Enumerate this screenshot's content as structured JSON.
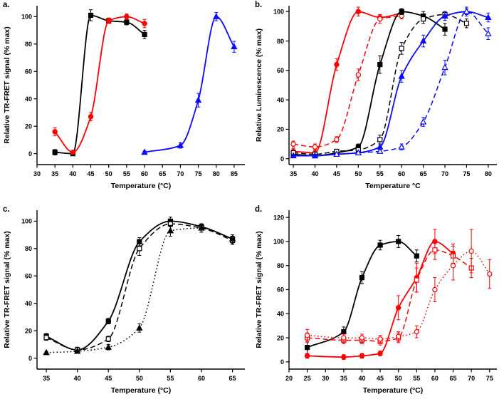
{
  "figure": {
    "background": "#ffffff",
    "colors": {
      "black": "#000000",
      "red": "#ff0000",
      "blue": "#0a0aff"
    }
  },
  "chart_data": [
    {
      "id": "a",
      "panel_label": "a.",
      "type": "scatter",
      "title": "",
      "xlabel": "Temperature (°C)",
      "ylabel": "Relative TR-FRET signal (% max)",
      "xlim": [
        30,
        88
      ],
      "ylim": [
        -8,
        108
      ],
      "xticks": [
        30,
        35,
        40,
        45,
        50,
        55,
        60,
        65,
        70,
        75,
        80,
        85
      ],
      "yticks": [
        0,
        20,
        40,
        60,
        80,
        100
      ],
      "grid": false,
      "legend": "none",
      "series": [
        {
          "name": "black-filled-squares-solid",
          "color": "#000000",
          "marker": "square",
          "fill": "filled",
          "line": "solid",
          "x": [
            35,
            40,
            45,
            50,
            55,
            60
          ],
          "y": [
            1,
            0,
            101,
            97,
            96,
            87
          ],
          "err": [
            2,
            1,
            4,
            2,
            2,
            3
          ]
        },
        {
          "name": "red-filled-circles-solid",
          "color": "#ff0000",
          "marker": "circle",
          "fill": "filled",
          "line": "solid",
          "x": [
            35,
            40,
            45,
            50,
            55,
            60
          ],
          "y": [
            16,
            1,
            27,
            97,
            100,
            95
          ],
          "err": [
            3,
            1,
            3,
            2,
            2,
            3
          ]
        },
        {
          "name": "blue-filled-triangles-solid",
          "color": "#0a0aff",
          "marker": "triangle",
          "fill": "filled",
          "line": "solid",
          "x": [
            60,
            70,
            75,
            80,
            85
          ],
          "y": [
            1,
            6,
            39,
            100,
            78
          ],
          "err": [
            1,
            2,
            5,
            3,
            4
          ]
        }
      ]
    },
    {
      "id": "b",
      "panel_label": "b.",
      "type": "scatter",
      "title": "",
      "xlabel": "Temperature °C",
      "ylabel": "Relative Luminescence (% max)",
      "xlim": [
        34,
        82
      ],
      "ylim": [
        -4,
        104
      ],
      "xticks": [
        35,
        40,
        45,
        50,
        55,
        60,
        65,
        70,
        75,
        80
      ],
      "yticks": [
        0,
        20,
        40,
        60,
        80,
        100
      ],
      "grid": false,
      "legend": "none",
      "series": [
        {
          "name": "red-filled-circles-solid",
          "color": "#ff0000",
          "marker": "circle",
          "fill": "filled",
          "line": "solid",
          "x": [
            35,
            40,
            45,
            50,
            55,
            60
          ],
          "y": [
            5,
            4,
            64,
            100,
            96,
            99
          ],
          "err": [
            2,
            2,
            4,
            3,
            2,
            2
          ]
        },
        {
          "name": "red-open-circles-dashed",
          "color": "#ff0000",
          "marker": "circle",
          "fill": "open",
          "line": "dashed",
          "x": [
            35,
            40,
            45,
            50,
            55,
            60
          ],
          "y": [
            10,
            8,
            13,
            57,
            95,
            97
          ],
          "err": [
            2,
            2,
            2,
            4,
            3,
            2
          ]
        },
        {
          "name": "black-filled-squares-solid",
          "color": "#000000",
          "marker": "square",
          "fill": "filled",
          "line": "solid",
          "x": [
            35,
            40,
            45,
            50,
            55,
            60,
            65,
            70
          ],
          "y": [
            3,
            2,
            4,
            8,
            64,
            100,
            97,
            88
          ],
          "err": [
            1,
            1,
            1,
            2,
            6,
            2,
            3,
            4
          ]
        },
        {
          "name": "black-open-squares-dashed",
          "color": "#000000",
          "marker": "square",
          "fill": "open",
          "line": "dashed",
          "x": [
            35,
            40,
            45,
            50,
            55,
            60,
            65,
            70,
            75
          ],
          "y": [
            4,
            3,
            5,
            6,
            13,
            75,
            95,
            98,
            92
          ],
          "err": [
            1,
            1,
            1,
            1,
            3,
            4,
            3,
            2,
            3
          ]
        },
        {
          "name": "blue-filled-triangles-solid",
          "color": "#0a0aff",
          "marker": "triangle",
          "fill": "filled",
          "line": "solid",
          "x": [
            35,
            40,
            45,
            50,
            55,
            60,
            65,
            70,
            75,
            80
          ],
          "y": [
            2,
            2,
            3,
            4,
            8,
            56,
            80,
            97,
            100,
            96
          ],
          "err": [
            1,
            1,
            1,
            1,
            2,
            4,
            4,
            3,
            2,
            3
          ]
        },
        {
          "name": "blue-open-triangles-dashed",
          "color": "#0a0aff",
          "marker": "triangle",
          "fill": "open",
          "line": "dashed",
          "x": [
            45,
            50,
            55,
            60,
            65,
            70,
            75,
            80
          ],
          "y": [
            3,
            4,
            5,
            8,
            25,
            62,
            100,
            85
          ],
          "err": [
            1,
            1,
            1,
            2,
            3,
            5,
            3,
            4
          ]
        }
      ]
    },
    {
      "id": "c",
      "panel_label": "c.",
      "type": "scatter",
      "title": "",
      "xlabel": "Temperature (°C)",
      "ylabel": "Relative TR-FRET signal (% max)",
      "xlim": [
        33.5,
        67
      ],
      "ylim": [
        -8,
        108
      ],
      "xticks": [
        35,
        40,
        45,
        50,
        55,
        60,
        65
      ],
      "yticks": [
        0,
        20,
        40,
        60,
        80,
        100
      ],
      "grid": false,
      "legend": "none",
      "series": [
        {
          "name": "black-filled-squares-solid",
          "color": "#000000",
          "marker": "square",
          "fill": "filled",
          "line": "solid",
          "x": [
            35,
            40,
            45,
            50,
            55,
            60,
            65
          ],
          "y": [
            16,
            6,
            27,
            85,
            100,
            96,
            87
          ],
          "err": [
            2,
            2,
            2,
            3,
            3,
            2,
            3
          ]
        },
        {
          "name": "black-open-squares-dashed",
          "color": "#000000",
          "marker": "square",
          "fill": "open",
          "line": "dashed",
          "x": [
            35,
            40,
            45,
            50,
            55,
            60,
            65
          ],
          "y": [
            15,
            6,
            14,
            80,
            98,
            95,
            86
          ],
          "err": [
            2,
            1,
            2,
            5,
            2,
            3,
            3
          ]
        },
        {
          "name": "black-filled-triangles-dotted",
          "color": "#000000",
          "marker": "triangle",
          "fill": "filled",
          "line": "dotted",
          "x": [
            35,
            40,
            45,
            50,
            55,
            60,
            65
          ],
          "y": [
            4,
            5,
            8,
            22,
            93,
            95,
            87
          ],
          "err": [
            1,
            1,
            2,
            3,
            4,
            3,
            3
          ]
        }
      ]
    },
    {
      "id": "d",
      "panel_label": "d.",
      "type": "scatter",
      "title": "",
      "xlabel": "Temperature (°C)",
      "ylabel": "Relative TR-FRET signal (% max)",
      "xlim": [
        20,
        77
      ],
      "ylim": [
        -6,
        126
      ],
      "xticks": [
        20,
        25,
        30,
        35,
        40,
        45,
        50,
        55,
        60,
        65,
        70,
        75
      ],
      "yticks": [
        0,
        20,
        40,
        60,
        80,
        100,
        120
      ],
      "grid": false,
      "legend": "none",
      "series": [
        {
          "name": "black-filled-squares-solid",
          "color": "#000000",
          "marker": "square",
          "fill": "filled",
          "line": "solid",
          "x": [
            25,
            35,
            40,
            45,
            50,
            55
          ],
          "y": [
            12,
            25,
            70,
            97,
            100,
            88
          ],
          "err": [
            5,
            4,
            5,
            4,
            5,
            5
          ]
        },
        {
          "name": "red-filled-circles-solid",
          "color": "#ff0000",
          "marker": "circle",
          "fill": "filled",
          "line": "solid",
          "x": [
            25,
            35,
            40,
            45,
            50,
            55,
            60,
            65
          ],
          "y": [
            5,
            4,
            5,
            7,
            45,
            70,
            100,
            90
          ],
          "err": [
            2,
            2,
            2,
            2,
            10,
            12,
            10,
            8
          ]
        },
        {
          "name": "red-open-squares-dashed",
          "color": "#ff0000",
          "marker": "square",
          "fill": "open",
          "line": "dashed",
          "x": [
            25,
            35,
            40,
            45,
            50,
            55,
            60,
            65,
            70
          ],
          "y": [
            20,
            18,
            18,
            17,
            20,
            68,
            93,
            88,
            78
          ],
          "err": [
            4,
            3,
            3,
            3,
            4,
            10,
            8,
            8,
            8
          ]
        },
        {
          "name": "red-open-circles-dotted",
          "color": "#ff0000",
          "marker": "circle",
          "fill": "open",
          "line": "dotted",
          "x": [
            25,
            35,
            40,
            45,
            50,
            55,
            60,
            65,
            70,
            75
          ],
          "y": [
            22,
            20,
            20,
            19,
            21,
            25,
            60,
            80,
            92,
            73
          ],
          "err": [
            5,
            3,
            3,
            3,
            4,
            5,
            10,
            12,
            18,
            12
          ]
        }
      ]
    }
  ]
}
